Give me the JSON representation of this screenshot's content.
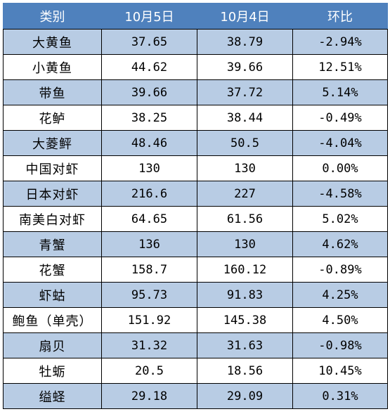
{
  "table": {
    "headers": [
      "类别",
      "10月5日",
      "10月4日",
      "环比"
    ],
    "rows": [
      [
        "大黄鱼",
        "37.65",
        "38.79",
        "-2.94%"
      ],
      [
        "小黄鱼",
        "44.62",
        "39.66",
        "12.51%"
      ],
      [
        "带鱼",
        "39.66",
        "37.72",
        "5.14%"
      ],
      [
        "花鲈",
        "38.25",
        "38.44",
        "-0.49%"
      ],
      [
        "大菱鲆",
        "48.46",
        "50.5",
        "-4.04%"
      ],
      [
        "中国对虾",
        "130",
        "130",
        "0.00%"
      ],
      [
        "日本对虾",
        "216.6",
        "227",
        "-4.58%"
      ],
      [
        "南美白对虾",
        "64.65",
        "61.56",
        "5.02%"
      ],
      [
        "青蟹",
        "136",
        "130",
        "4.62%"
      ],
      [
        "花蟹",
        "158.7",
        "160.12",
        "-0.89%"
      ],
      [
        "虾蛄",
        "95.73",
        "91.83",
        "4.25%"
      ],
      [
        "鲍鱼（单壳）",
        "151.92",
        "145.38",
        "4.50%"
      ],
      [
        "扇贝",
        "31.32",
        "31.63",
        "-0.98%"
      ],
      [
        "牡蛎",
        "20.5",
        "18.56",
        "10.45%"
      ],
      [
        "缢蛏",
        "29.18",
        "29.09",
        "0.31%"
      ]
    ]
  },
  "colors": {
    "header_bg": "#4f81bd",
    "header_text": "#ffffff",
    "band_bg": "#b8cce4",
    "row_bg": "#ffffff",
    "border": "#000000"
  }
}
